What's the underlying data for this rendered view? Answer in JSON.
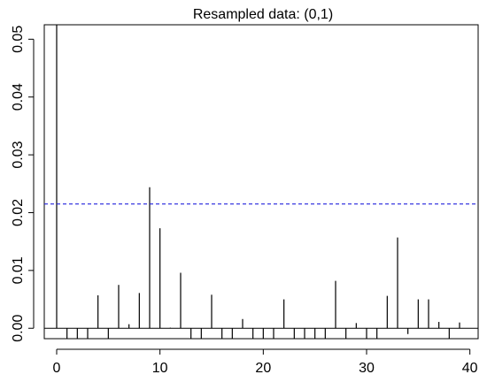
{
  "chart_data": {
    "type": "bar",
    "title": "Resampled data: (0,1)",
    "xlabel": "",
    "ylabel": "",
    "xlim": [
      -1.2,
      40.8
    ],
    "ylim": [
      -0.0018,
      0.0525
    ],
    "x_ticks": [
      0,
      10,
      20,
      30,
      40
    ],
    "x_tick_labels": [
      "0",
      "10",
      "20",
      "30",
      "40"
    ],
    "y_ticks": [
      0.0,
      0.01,
      0.02,
      0.03,
      0.04,
      0.05
    ],
    "y_tick_labels": [
      "0.00",
      "0.01",
      "0.02",
      "0.03",
      "0.04",
      "0.05"
    ],
    "grid": false,
    "series": [
      {
        "x": [
          0,
          1,
          2,
          3,
          4,
          5,
          6,
          7,
          8,
          9,
          10,
          11,
          12,
          13,
          14,
          15,
          16,
          17,
          18,
          19,
          20,
          21,
          22,
          23,
          24,
          25,
          26,
          27,
          28,
          29,
          30,
          31,
          32,
          33,
          34,
          35,
          36,
          37,
          38,
          39
        ],
        "values": [
          0.0525,
          -0.0018,
          -0.0018,
          -0.0018,
          0.0057,
          -0.0018,
          0.0075,
          0.0007,
          0.0061,
          0.0244,
          0.0173,
          0.0001,
          0.0096,
          -0.0018,
          -0.0018,
          0.0058,
          -0.0018,
          -0.0018,
          0.0016,
          -0.0018,
          -0.0018,
          -0.0018,
          0.005,
          -0.0018,
          -0.0018,
          -0.0018,
          -0.0018,
          0.0082,
          -0.0018,
          0.0009,
          -0.0018,
          -0.0018,
          0.0056,
          0.0157,
          -0.001,
          0.005,
          0.005,
          0.0011,
          -0.0018,
          0.001
        ]
      }
    ],
    "reference_line": {
      "y": 0.0215,
      "color": "#2222dd",
      "style": "dashed"
    }
  }
}
